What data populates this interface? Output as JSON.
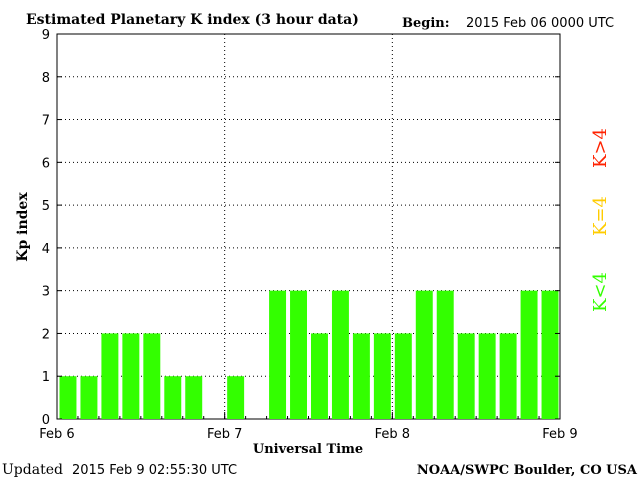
{
  "chart_data": {
    "type": "bar",
    "title": "Estimated Planetary K index (3 hour data)",
    "begin_label": "Begin:",
    "begin_value": "2015 Feb 06 0000 UTC",
    "xlabel": "Universal Time",
    "ylabel": "Kp index",
    "ylim": [
      0,
      9
    ],
    "yticks": [
      "0",
      "1",
      "2",
      "3",
      "4",
      "5",
      "6",
      "7",
      "8",
      "9"
    ],
    "xticks": [
      "Feb 6",
      "Feb 7",
      "Feb 8",
      "Feb 9"
    ],
    "interval_hours": 3,
    "values": [
      1,
      1,
      2,
      2,
      2,
      1,
      1,
      0,
      1,
      0,
      3,
      3,
      2,
      3,
      2,
      2,
      2,
      3,
      3,
      2,
      2,
      2,
      3,
      3
    ],
    "bar_color": "#33ff00",
    "grid": true,
    "legend": [
      {
        "label": "K<4",
        "color": "#33ff00"
      },
      {
        "label": "K=4",
        "color": "#ffcc00"
      },
      {
        "label": "K>4",
        "color": "#ff2200"
      }
    ]
  },
  "footer": {
    "updated_label": "Updated",
    "updated_value": "2015 Feb  9 02:55:30 UTC",
    "source": "NOAA/SWPC Boulder, CO USA"
  }
}
